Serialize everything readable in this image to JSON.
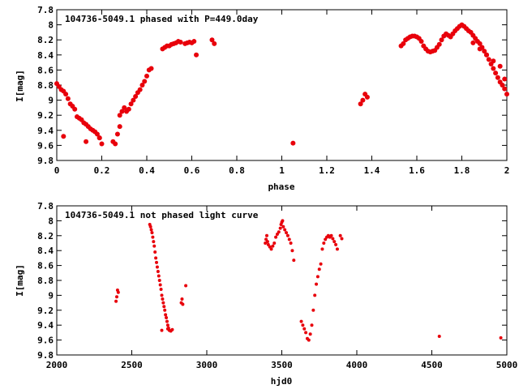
{
  "chart_data": [
    {
      "type": "scatter",
      "title": "104736-5049.1 phased with P=449.0day",
      "xlabel": "phase",
      "ylabel": "I[mag]",
      "xlim": [
        0,
        2
      ],
      "ylim": [
        9.8,
        7.8
      ],
      "y_inverted": true,
      "grid": false,
      "xticks": [
        "0",
        "0.2",
        "0.4",
        "0.6",
        "0.8",
        "1",
        "1.2",
        "1.4",
        "1.6",
        "1.8",
        "2"
      ],
      "yticks": [
        "7.8",
        "8",
        "8.2",
        "8.4",
        "8.6",
        "8.8",
        "9",
        "9.2",
        "9.4",
        "9.6",
        "9.8"
      ],
      "series": [
        {
          "color": "#e8000b",
          "x": [
            0.0,
            0.01,
            0.02,
            0.03,
            0.04,
            0.05,
            0.06,
            0.07,
            0.08,
            0.09,
            0.1,
            0.11,
            0.12,
            0.13,
            0.14,
            0.15,
            0.16,
            0.17,
            0.18,
            0.19,
            0.2,
            0.03,
            0.13,
            0.19,
            0.25,
            0.26,
            0.27,
            0.28,
            0.28,
            0.29,
            0.3,
            0.31,
            0.32,
            0.33,
            0.34,
            0.35,
            0.36,
            0.37,
            0.38,
            0.39,
            0.4,
            0.41,
            0.42,
            0.47,
            0.48,
            0.49,
            0.5,
            0.51,
            0.52,
            0.53,
            0.54,
            0.55,
            0.57,
            0.58,
            0.59,
            0.6,
            0.61,
            0.62,
            0.69,
            0.7,
            1.05,
            1.35,
            1.36,
            1.37,
            1.38,
            1.53,
            1.54,
            1.55,
            1.56,
            1.57,
            1.58,
            1.59,
            1.6,
            1.61,
            1.62,
            1.63,
            1.64,
            1.65,
            1.66,
            1.67,
            1.68,
            1.69,
            1.7,
            1.71,
            1.72,
            1.73,
            1.74,
            1.75,
            1.76,
            1.77,
            1.78,
            1.79,
            1.8,
            1.81,
            1.82,
            1.83,
            1.84,
            1.85,
            1.86,
            1.87,
            1.88,
            1.89,
            1.9,
            1.91,
            1.92,
            1.93,
            1.94,
            1.95,
            1.96,
            1.97,
            1.98,
            1.99,
            2.0,
            1.85,
            1.88,
            1.91,
            1.94,
            1.97,
            1.99
          ],
          "y": [
            8.78,
            8.82,
            8.86,
            8.88,
            8.92,
            8.98,
            9.05,
            9.08,
            9.12,
            9.22,
            9.24,
            9.26,
            9.3,
            9.32,
            9.35,
            9.38,
            9.4,
            9.42,
            9.45,
            9.5,
            9.58,
            9.48,
            9.55,
            9.5,
            9.55,
            9.58,
            9.45,
            9.35,
            9.2,
            9.15,
            9.1,
            9.15,
            9.12,
            9.05,
            9.0,
            8.95,
            8.9,
            8.86,
            8.8,
            8.75,
            8.68,
            8.6,
            8.58,
            8.32,
            8.3,
            8.28,
            8.28,
            8.26,
            8.25,
            8.24,
            8.22,
            8.23,
            8.25,
            8.24,
            8.23,
            8.24,
            8.22,
            8.4,
            8.2,
            8.25,
            9.57,
            9.05,
            9.0,
            8.92,
            8.96,
            8.28,
            8.25,
            8.2,
            8.18,
            8.16,
            8.15,
            8.15,
            8.16,
            8.18,
            8.22,
            8.28,
            8.32,
            8.35,
            8.36,
            8.35,
            8.34,
            8.3,
            8.26,
            8.2,
            8.15,
            8.12,
            8.14,
            8.16,
            8.12,
            8.08,
            8.05,
            8.02,
            8.0,
            8.02,
            8.05,
            8.08,
            8.1,
            8.14,
            8.18,
            8.22,
            8.25,
            8.3,
            8.35,
            8.4,
            8.46,
            8.52,
            8.58,
            8.64,
            8.7,
            8.76,
            8.8,
            8.85,
            8.92,
            8.24,
            8.32,
            8.4,
            8.48,
            8.55,
            8.72
          ]
        }
      ]
    },
    {
      "type": "scatter",
      "title": "104736-5049.1 not phased light curve",
      "xlabel": "hjd0",
      "ylabel": "I[mag]",
      "xlim": [
        2000,
        5000
      ],
      "ylim": [
        9.8,
        7.8
      ],
      "y_inverted": true,
      "grid": false,
      "xticks": [
        "2000",
        "2500",
        "3000",
        "3500",
        "4000",
        "4500",
        "5000"
      ],
      "yticks": [
        "7.8",
        "8",
        "8.2",
        "8.4",
        "8.6",
        "8.8",
        "9",
        "9.2",
        "9.4",
        "9.6",
        "9.8"
      ],
      "series": [
        {
          "color": "#e8000b",
          "x": [
            2395,
            2400,
            2405,
            2410,
            2620,
            2625,
            2630,
            2635,
            2640,
            2645,
            2650,
            2655,
            2660,
            2665,
            2670,
            2675,
            2680,
            2685,
            2690,
            2695,
            2700,
            2705,
            2710,
            2715,
            2720,
            2725,
            2730,
            2735,
            2740,
            2745,
            2750,
            2760,
            2770,
            2700,
            2740,
            2830,
            2835,
            2840,
            2860,
            3390,
            3395,
            3400,
            3405,
            3410,
            3420,
            3430,
            3440,
            3450,
            3460,
            3470,
            3480,
            3490,
            3495,
            3500,
            3505,
            3510,
            3520,
            3530,
            3540,
            3550,
            3560,
            3570,
            3580,
            3630,
            3640,
            3650,
            3660,
            3670,
            3680,
            3690,
            3700,
            3710,
            3720,
            3730,
            3740,
            3750,
            3760,
            3770,
            3780,
            3790,
            3800,
            3810,
            3820,
            3830,
            3840,
            3850,
            3860,
            3870,
            3890,
            3900,
            4550,
            4960
          ],
          "y": [
            9.08,
            9.02,
            8.93,
            8.96,
            8.05,
            8.08,
            8.12,
            8.16,
            8.22,
            8.28,
            8.34,
            8.42,
            8.5,
            8.56,
            8.62,
            8.68,
            8.74,
            8.8,
            8.86,
            8.92,
            9.0,
            9.05,
            9.1,
            9.15,
            9.2,
            9.26,
            9.3,
            9.35,
            9.4,
            9.44,
            9.47,
            9.48,
            9.46,
            9.47,
            9.45,
            9.1,
            9.05,
            9.12,
            8.87,
            8.3,
            8.25,
            8.2,
            8.28,
            8.32,
            8.35,
            8.38,
            8.34,
            8.3,
            8.22,
            8.18,
            8.15,
            8.1,
            8.05,
            8.02,
            8.0,
            8.08,
            8.12,
            8.16,
            8.2,
            8.25,
            8.3,
            8.4,
            8.53,
            9.35,
            9.4,
            9.45,
            9.5,
            9.58,
            9.6,
            9.52,
            9.4,
            9.2,
            9.0,
            8.85,
            8.75,
            8.65,
            8.58,
            8.38,
            8.3,
            8.25,
            8.22,
            8.2,
            8.22,
            8.2,
            8.24,
            8.28,
            8.32,
            8.38,
            8.2,
            8.24,
            9.55,
            9.57
          ]
        }
      ]
    }
  ]
}
